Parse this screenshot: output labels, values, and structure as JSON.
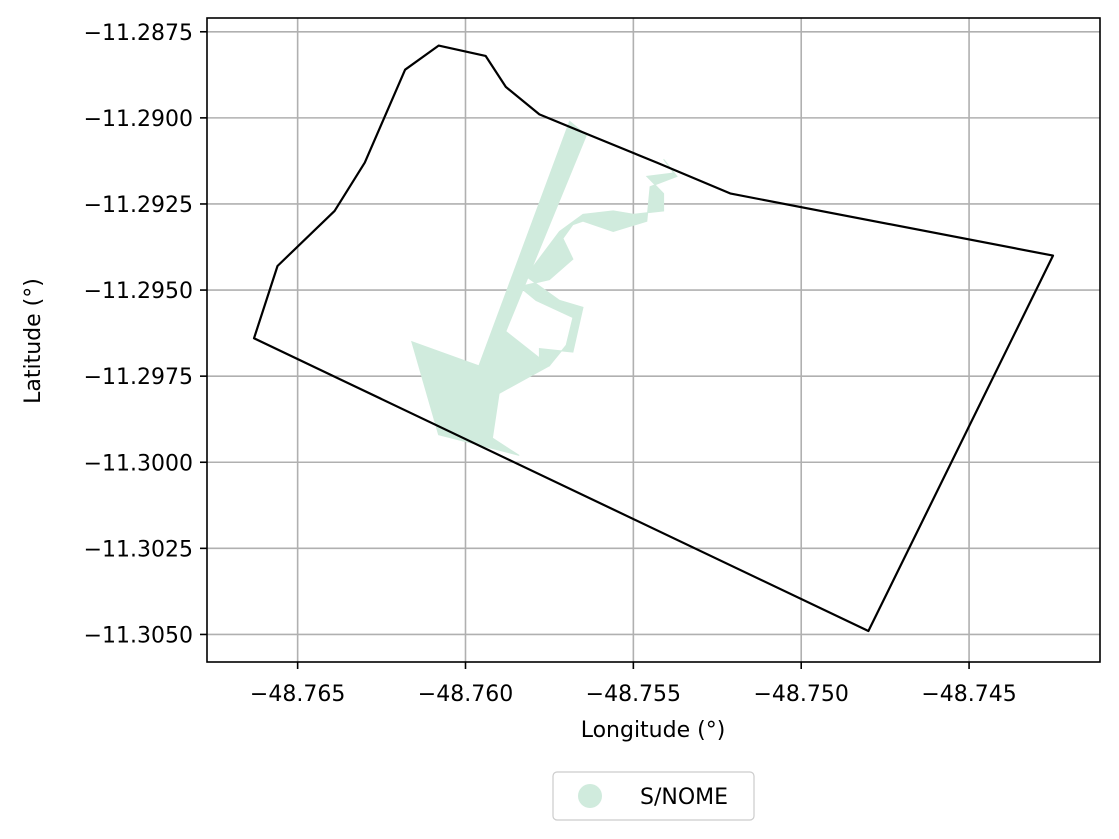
{
  "chart_data": {
    "type": "map",
    "xlabel": "Longitude (°)",
    "ylabel": "Latitude (°)",
    "xlim": [
      -48.7677,
      -48.7411
    ],
    "ylim": [
      -11.3058,
      -11.2871
    ],
    "xticks": [
      -48.765,
      -48.76,
      -48.755,
      -48.75,
      -48.745
    ],
    "xtick_labels": [
      "−48.765",
      "−48.760",
      "−48.755",
      "−48.750",
      "−48.745"
    ],
    "yticks": [
      -11.2875,
      -11.29,
      -11.2925,
      -11.295,
      -11.2975,
      -11.3,
      -11.3025,
      -11.305
    ],
    "ytick_labels": [
      "−11.2875",
      "−11.2900",
      "−11.2925",
      "−11.2950",
      "−11.2975",
      "−11.3000",
      "−11.3025",
      "−11.3050"
    ],
    "grid": true,
    "legend": {
      "placement": "bottom-center",
      "entries": [
        {
          "label": "S/NOME",
          "color": "#d0ebdd"
        }
      ]
    },
    "boundary": {
      "color": "#000000",
      "coords": [
        [
          -48.7663,
          -11.2964
        ],
        [
          -48.7656,
          -11.2943
        ],
        [
          -48.7639,
          -11.2927
        ],
        [
          -48.763,
          -11.2913
        ],
        [
          -48.7618,
          -11.2886
        ],
        [
          -48.7608,
          -11.2879
        ],
        [
          -48.7594,
          -11.2882
        ],
        [
          -48.7588,
          -11.2891
        ],
        [
          -48.7578,
          -11.2899
        ],
        [
          -48.7563,
          -11.2905
        ],
        [
          -48.7543,
          -11.2913
        ],
        [
          -48.7521,
          -11.2922
        ],
        [
          -48.7425,
          -11.294
        ],
        [
          -48.748,
          -11.3049
        ],
        [
          -48.7663,
          -11.2964
        ]
      ]
    },
    "features": [
      {
        "name": "S/NOME",
        "color": "#d0ebdd",
        "coords": [
          [
            -48.7569,
            -11.2901
          ],
          [
            -48.7564,
            -11.2905
          ],
          [
            -48.7588,
            -11.2962
          ],
          [
            -48.7575,
            -11.2972
          ],
          [
            -48.759,
            -11.298
          ],
          [
            -48.7592,
            -11.2993
          ],
          [
            -48.7584,
            -11.2998
          ],
          [
            -48.7608,
            -11.2992
          ],
          [
            -48.7616,
            -11.2965
          ],
          [
            -48.7596,
            -11.2972
          ]
        ]
      },
      {
        "name": "S/NOME",
        "color": "#d0ebdd",
        "coords": [
          [
            -48.7541,
            -11.2912
          ],
          [
            -48.7537,
            -11.2917
          ],
          [
            -48.7545,
            -11.292
          ],
          [
            -48.7546,
            -11.293
          ],
          [
            -48.7556,
            -11.2933
          ],
          [
            -48.7565,
            -11.293
          ],
          [
            -48.7568,
            -11.2931
          ],
          [
            -48.7571,
            -11.2935
          ],
          [
            -48.7568,
            -11.2941
          ],
          [
            -48.7575,
            -11.2947
          ],
          [
            -48.7584,
            -11.2949
          ],
          [
            -48.7579,
            -11.2953
          ],
          [
            -48.7568,
            -11.2958
          ],
          [
            -48.757,
            -11.2966
          ],
          [
            -48.7575,
            -11.2972
          ],
          [
            -48.7578,
            -11.2972
          ],
          [
            -48.7578,
            -11.2967
          ],
          [
            -48.7568,
            -11.2968
          ],
          [
            -48.7565,
            -11.2955
          ],
          [
            -48.7572,
            -11.2953
          ],
          [
            -48.7582,
            -11.2946
          ],
          [
            -48.7572,
            -11.2933
          ],
          [
            -48.7565,
            -11.2928
          ],
          [
            -48.7556,
            -11.2927
          ],
          [
            -48.755,
            -11.2928
          ],
          [
            -48.7541,
            -11.2927
          ],
          [
            -48.7541,
            -11.2922
          ],
          [
            -48.7546,
            -11.2917
          ],
          [
            -48.7538,
            -11.2916
          ]
        ]
      }
    ]
  }
}
